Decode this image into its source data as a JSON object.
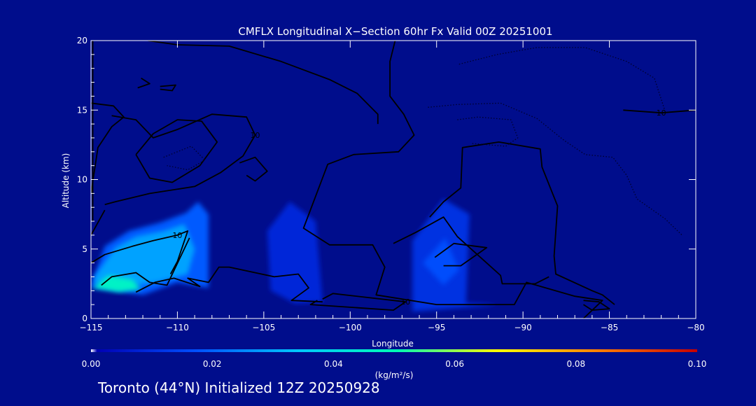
{
  "footer_text": "Toronto (44°N) Initialized 12Z 20250928",
  "colorbar": {
    "unit_label": "(kg/m²/s)",
    "ticks": [
      "0.00",
      "0.02",
      "0.04",
      "0.06",
      "0.08",
      "0.10"
    ],
    "min": 0.0,
    "max": 0.1
  },
  "chart_data": {
    "type": "heatmap",
    "title": "CMFLX Longitudinal X−Section 60hr  Fx Valid 00Z 20251001",
    "xlabel": "Longitude",
    "ylabel": "Altitude (km)",
    "xlim": [
      -115,
      -80
    ],
    "ylim": [
      0,
      20
    ],
    "x_ticks": [
      -115,
      -110,
      -105,
      -100,
      -95,
      -90,
      -85,
      -80
    ],
    "x_tick_labels": [
      "−115",
      "−110",
      "−105",
      "−100",
      "−95",
      "−90",
      "−85",
      "−80"
    ],
    "y_ticks": [
      0,
      5,
      10,
      15,
      20
    ],
    "y_tick_labels": [
      "0",
      "5",
      "10",
      "15",
      "20"
    ],
    "colormap": [
      "#0000b4",
      "#0050ff",
      "#00c8ff",
      "#00ffb4",
      "#ffff00",
      "#ff8000",
      "#c80000"
    ],
    "flux_regions": [
      {
        "points": [
          [
            -115,
            2.4
          ],
          [
            -114.2,
            5.2
          ],
          [
            -112.8,
            6.3
          ],
          [
            -111,
            6.9
          ],
          [
            -109.5,
            7.6
          ],
          [
            -108.8,
            8.4
          ],
          [
            -108.2,
            7.5
          ],
          [
            -108.2,
            2.2
          ],
          [
            -110,
            2.6
          ],
          [
            -112,
            1.7
          ],
          [
            -115,
            2.2
          ]
        ],
        "value": 0.018
      },
      {
        "points": [
          [
            -114.8,
            3.0
          ],
          [
            -113.6,
            5.1
          ],
          [
            -112.4,
            5.9
          ],
          [
            -110.8,
            6.3
          ],
          [
            -109.6,
            6.8
          ],
          [
            -109,
            5.0
          ],
          [
            -109.4,
            3.2
          ],
          [
            -111.2,
            2.6
          ],
          [
            -113.4,
            2.2
          ],
          [
            -114.8,
            2.5
          ]
        ],
        "value": 0.028
      },
      {
        "points": [
          [
            -114.9,
            2.2
          ],
          [
            -114,
            3.1
          ],
          [
            -112.6,
            2.8
          ],
          [
            -112.1,
            2.1
          ],
          [
            -113.4,
            1.9
          ]
        ],
        "value": 0.046
      },
      {
        "points": [
          [
            -104.8,
            6.3
          ],
          [
            -103.5,
            8.4
          ],
          [
            -102,
            7.0
          ],
          [
            -101.6,
            1.2
          ],
          [
            -103.2,
            1.1
          ],
          [
            -104.6,
            2.0
          ]
        ],
        "value": 0.008
      },
      {
        "points": [
          [
            -96.4,
            5.6
          ],
          [
            -94.6,
            8.6
          ],
          [
            -93.1,
            7.5
          ],
          [
            -93.3,
            1.1
          ],
          [
            -91.4,
            1.0
          ],
          [
            -96.4,
            0.5
          ]
        ],
        "value": 0.01
      },
      {
        "points": [
          [
            -95.8,
            4.0
          ],
          [
            -94.5,
            5.8
          ],
          [
            -93.7,
            3.5
          ],
          [
            -94.6,
            2.4
          ]
        ],
        "value": 0.016
      }
    ],
    "contours": [
      {
        "label": "",
        "style": "solid",
        "points": [
          [
            -114.9,
            20
          ],
          [
            -114.9,
            7
          ]
        ]
      },
      {
        "label": "",
        "style": "solid",
        "points": [
          [
            -111.7,
            20
          ],
          [
            -110,
            19.7
          ],
          [
            -107,
            19.6
          ],
          [
            -104,
            18.5
          ],
          [
            -101.2,
            17.2
          ],
          [
            -99.6,
            16.2
          ],
          [
            -98.4,
            14.7
          ],
          [
            -98.4,
            14.0
          ]
        ]
      },
      {
        "label": "",
        "style": "solid",
        "points": [
          [
            -97.4,
            20
          ],
          [
            -97.7,
            18.5
          ],
          [
            -97.7,
            16.0
          ],
          [
            -96.9,
            14.7
          ],
          [
            -96.3,
            13.2
          ],
          [
            -97.2,
            12.0
          ],
          [
            -99.8,
            11.8
          ],
          [
            -101.3,
            11.1
          ],
          [
            -102.7,
            6.5
          ],
          [
            -101.2,
            5.3
          ],
          [
            -98.7,
            5.3
          ],
          [
            -98.0,
            3.7
          ],
          [
            -98.5,
            1.7
          ],
          [
            -95.0,
            1.0
          ],
          [
            -90.5,
            1.0
          ],
          [
            -89.8,
            2.6
          ],
          [
            -87.0,
            1.6
          ],
          [
            -85.4,
            1.3
          ],
          [
            -86.5,
            0.0
          ]
        ]
      },
      {
        "label": "",
        "style": "solid",
        "points": [
          [
            -115,
            15.5
          ],
          [
            -113.7,
            15.3
          ],
          [
            -113.1,
            14.5
          ],
          [
            -113.8,
            13.8
          ],
          [
            -114.6,
            12.3
          ],
          [
            -115,
            9.0
          ]
        ]
      },
      {
        "label": "10",
        "style": "solid",
        "points": [
          [
            -113.8,
            14.6
          ],
          [
            -112.4,
            14.3
          ],
          [
            -111.4,
            13.0
          ],
          [
            -110,
            13.6
          ],
          [
            -108,
            14.7
          ],
          [
            -106,
            14.5
          ],
          [
            -105.5,
            13.2
          ],
          [
            -106.2,
            11.7
          ],
          [
            -107.5,
            10.5
          ],
          [
            -109,
            9.5
          ],
          [
            -111.6,
            9.0
          ],
          [
            -113.6,
            8.4
          ],
          [
            -114.2,
            8.2
          ]
        ]
      },
      {
        "label": "",
        "style": "solid",
        "points": [
          [
            -112.4,
            11.8
          ],
          [
            -111.4,
            13.3
          ],
          [
            -110,
            14.3
          ],
          [
            -108.6,
            14.2
          ],
          [
            -107.7,
            12.7
          ],
          [
            -108.7,
            11.0
          ],
          [
            -110.3,
            9.8
          ],
          [
            -111.6,
            10.1
          ],
          [
            -112.4,
            11.8
          ]
        ]
      },
      {
        "label": "",
        "style": "solid",
        "points": [
          [
            -114.2,
            7.8
          ],
          [
            -115,
            6.0
          ]
        ]
      },
      {
        "label": "10",
        "style": "solid",
        "points": [
          [
            -115,
            4.0
          ],
          [
            -114.2,
            4.6
          ],
          [
            -112.6,
            5.2
          ],
          [
            -111.4,
            5.6
          ],
          [
            -110,
            6.0
          ],
          [
            -109.4,
            6.3
          ],
          [
            -110,
            4.1
          ],
          [
            -110.4,
            3.2
          ]
        ]
      },
      {
        "label": "",
        "style": "solid",
        "points": [
          [
            -114.4,
            2.4
          ],
          [
            -113.8,
            3.0
          ],
          [
            -112.4,
            3.3
          ],
          [
            -111.6,
            2.6
          ],
          [
            -110.6,
            2.4
          ],
          [
            -109.3,
            5.8
          ]
        ]
      },
      {
        "label": "",
        "style": "solid",
        "points": [
          [
            -112.4,
            1.9
          ],
          [
            -111.3,
            2.6
          ],
          [
            -110.2,
            2.9
          ],
          [
            -108.7,
            2.3
          ],
          [
            -109.4,
            2.9
          ],
          [
            -108.2,
            2.6
          ],
          [
            -107.6,
            3.7
          ],
          [
            -107.0,
            3.7
          ],
          [
            -104.4,
            3.0
          ],
          [
            -103,
            3.2
          ],
          [
            -102.4,
            2.2
          ],
          [
            -103.4,
            1.3
          ],
          [
            -101.6,
            1.2
          ]
        ]
      },
      {
        "label": "10",
        "style": "solid",
        "points": [
          [
            -101.9,
            1.3
          ],
          [
            -102.3,
            1.0
          ],
          [
            -97.5,
            0.6
          ],
          [
            -96.8,
            1.2
          ],
          [
            -101,
            1.8
          ],
          [
            -101.6,
            1.4
          ]
        ]
      },
      {
        "label": "",
        "style": "solid",
        "points": [
          [
            -106.4,
            11.2
          ],
          [
            -105.5,
            11.6
          ],
          [
            -104.8,
            10.6
          ],
          [
            -105.5,
            9.9
          ],
          [
            -106.0,
            10.3
          ]
        ]
      },
      {
        "label": "",
        "style": "solid",
        "points": [
          [
            -112.1,
            17.3
          ],
          [
            -111.6,
            16.9
          ],
          [
            -112.3,
            16.6
          ]
        ]
      },
      {
        "label": "",
        "style": "solid",
        "points": [
          [
            -111.0,
            16.7
          ],
          [
            -110.1,
            16.8
          ],
          [
            -110.3,
            16.4
          ],
          [
            -111.0,
            16.5
          ]
        ]
      },
      {
        "label": "",
        "style": "solid",
        "points": [
          [
            -95.1,
            4.4
          ],
          [
            -94.0,
            5.4
          ],
          [
            -92.1,
            5.1
          ],
          [
            -93.6,
            3.8
          ],
          [
            -94.6,
            3.8
          ]
        ]
      },
      {
        "label": "",
        "style": "solid",
        "points": [
          [
            -97.5,
            5.4
          ],
          [
            -96.2,
            6.2
          ],
          [
            -94.6,
            7.3
          ],
          [
            -93.8,
            5.9
          ],
          [
            -91.3,
            3.1
          ],
          [
            -91.2,
            2.5
          ],
          [
            -89.3,
            2.5
          ],
          [
            -88.5,
            3.0
          ]
        ]
      },
      {
        "label": "",
        "style": "solid",
        "points": [
          [
            -95.4,
            7.3
          ],
          [
            -94.6,
            8.4
          ],
          [
            -93.6,
            9.4
          ],
          [
            -93.5,
            12.3
          ],
          [
            -91.4,
            12.7
          ],
          [
            -89.0,
            12.2
          ],
          [
            -88.9,
            10.9
          ],
          [
            -88.0,
            8.1
          ],
          [
            -88.2,
            4.5
          ],
          [
            -88.1,
            3.2
          ],
          [
            -86.0,
            2.0
          ],
          [
            -85.4,
            1.7
          ],
          [
            -84.7,
            1.0
          ]
        ]
      },
      {
        "label": "",
        "style": "solid",
        "points": [
          [
            -86.5,
            1.3
          ],
          [
            -85.6,
            1.2
          ],
          [
            -85.0,
            0.7
          ],
          [
            -86.0,
            0.6
          ],
          [
            -86.5,
            1.0
          ]
        ]
      },
      {
        "label": "10",
        "style": "solid",
        "points": [
          [
            -84.2,
            15.0
          ],
          [
            -82.0,
            14.8
          ],
          [
            -80,
            15.0
          ]
        ]
      },
      {
        "label": "",
        "style": "dotted",
        "points": [
          [
            -93.7,
            18.3
          ],
          [
            -91.5,
            19.0
          ],
          [
            -89.2,
            19.5
          ],
          [
            -86.4,
            19.5
          ],
          [
            -84.0,
            18.5
          ],
          [
            -82.4,
            17.3
          ],
          [
            -81.8,
            15.0
          ]
        ]
      },
      {
        "label": "",
        "style": "dotted",
        "points": [
          [
            -95.5,
            15.2
          ],
          [
            -93.8,
            15.4
          ],
          [
            -91.3,
            15.5
          ],
          [
            -89.2,
            14.4
          ],
          [
            -87.6,
            12.8
          ],
          [
            -86.4,
            11.8
          ],
          [
            -84.8,
            11.6
          ],
          [
            -84.0,
            10.3
          ],
          [
            -83.4,
            8.6
          ],
          [
            -81.8,
            7.2
          ],
          [
            -80.8,
            6.0
          ]
        ]
      },
      {
        "label": "",
        "style": "dotted",
        "points": [
          [
            -93.8,
            14.3
          ],
          [
            -92.6,
            14.5
          ],
          [
            -90.7,
            14.3
          ],
          [
            -90.3,
            13.0
          ],
          [
            -91.0,
            12.4
          ],
          [
            -93.0,
            12.6
          ]
        ]
      },
      {
        "label": "",
        "style": "dotted",
        "points": [
          [
            -110.8,
            11.6
          ],
          [
            -109.2,
            12.4
          ],
          [
            -108.4,
            11.4
          ],
          [
            -109.4,
            10.7
          ],
          [
            -110.6,
            11.0
          ]
        ]
      }
    ]
  }
}
